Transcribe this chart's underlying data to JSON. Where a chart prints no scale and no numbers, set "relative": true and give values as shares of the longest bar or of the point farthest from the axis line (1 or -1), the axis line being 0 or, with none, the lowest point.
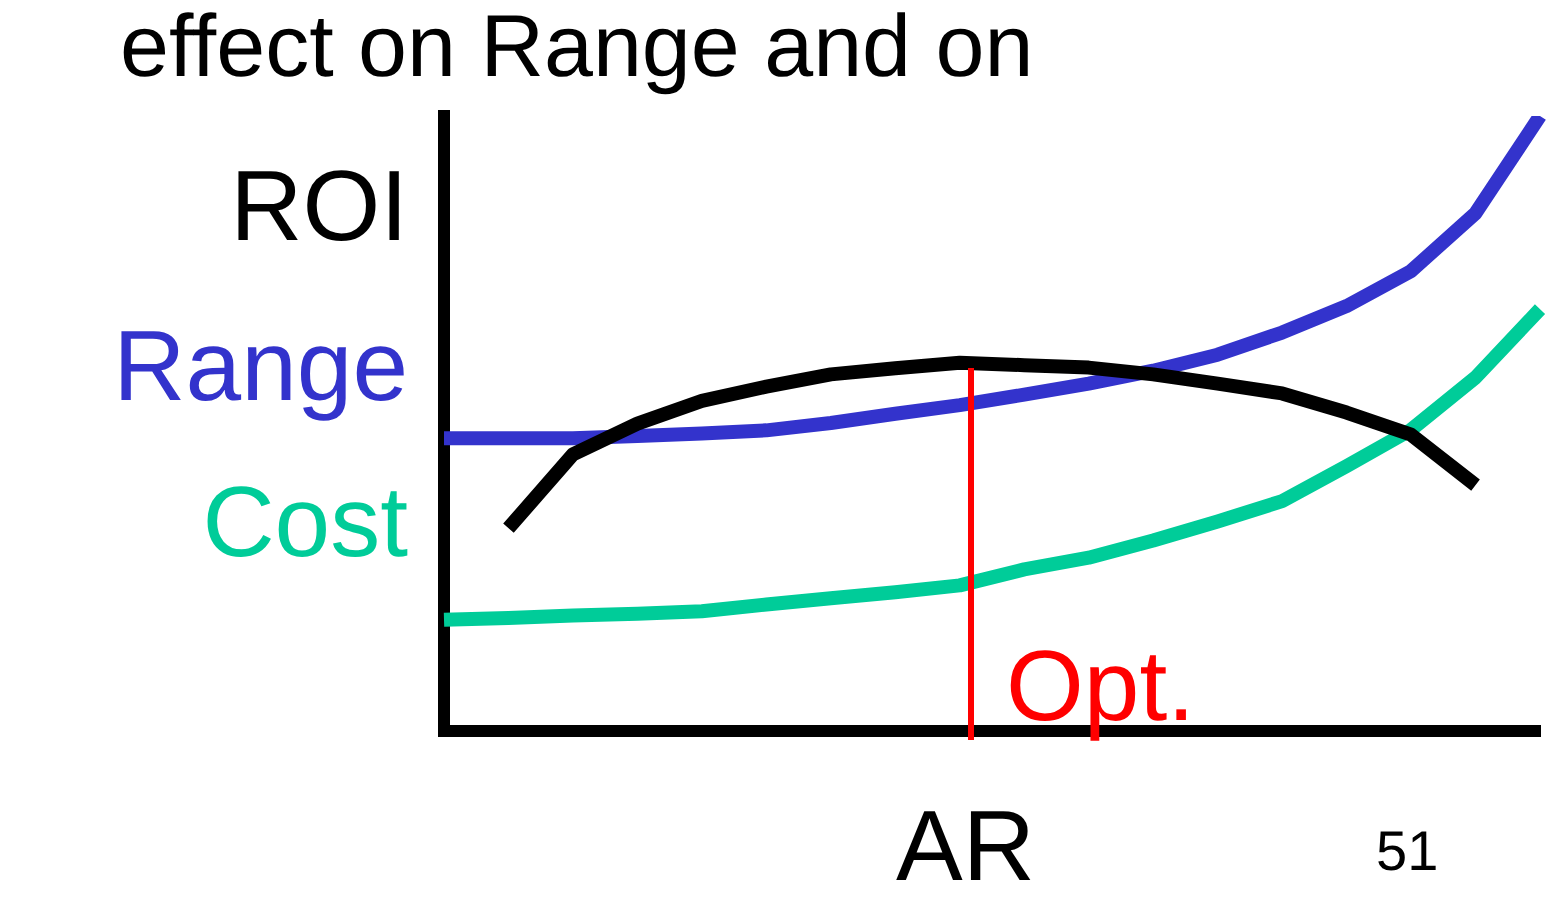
{
  "chart_data": {
    "type": "line",
    "title": "effect on Range and on",
    "xlabel": "AR",
    "relative": true,
    "legend": false,
    "marker": "none",
    "line_style": "solid",
    "categories": [
      null,
      null,
      null,
      null,
      null,
      null,
      null,
      null,
      null,
      null,
      null,
      null,
      null,
      null,
      null,
      null,
      null,
      null
    ],
    "series": [
      {
        "name": "ROI",
        "color": "#000000",
        "values": [
          null,
          0.33,
          0.45,
          0.5,
          0.537,
          0.56,
          0.58,
          0.59,
          0.599,
          0.595,
          0.591,
          0.58,
          0.565,
          0.549,
          0.518,
          0.482,
          0.4,
          null
        ]
      },
      {
        "name": "Range",
        "color": "#3333cc",
        "values": [
          0.476,
          0.476,
          0.476,
          0.48,
          0.484,
          0.489,
          0.501,
          0.516,
          0.53,
          0.547,
          0.565,
          0.586,
          0.612,
          0.648,
          0.691,
          0.748,
          0.842,
          1
        ]
      },
      {
        "name": "Cost",
        "color": "#00cc99",
        "values": [
          0.181,
          0.184,
          0.188,
          0.191,
          0.195,
          0.206,
          0.216,
          0.226,
          0.237,
          0.263,
          0.282,
          0.31,
          0.341,
          0.374,
          0.431,
          0.49,
          0.575,
          0.686
        ]
      }
    ],
    "annotations": [
      "Opt.",
      "51"
    ]
  }
}
